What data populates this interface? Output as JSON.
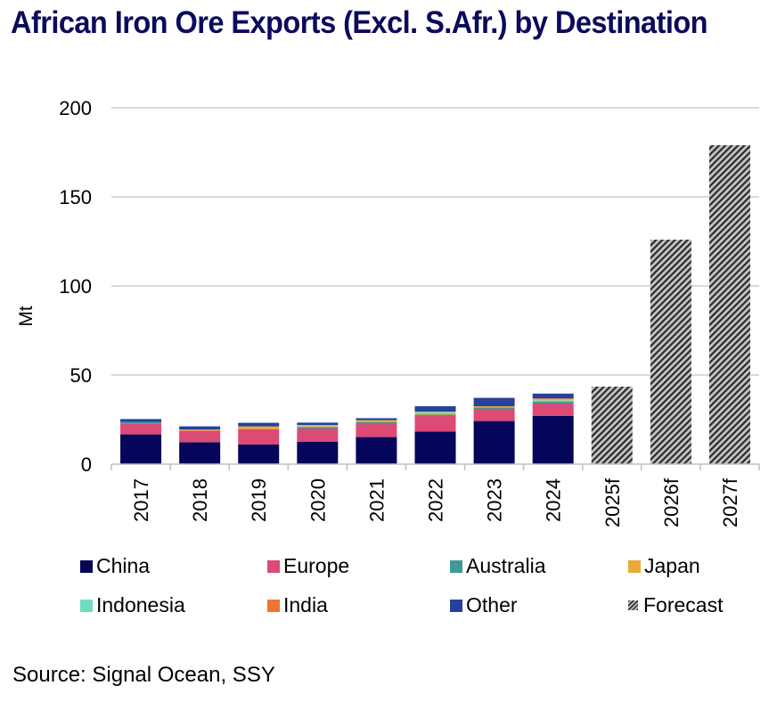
{
  "title": "African Iron Ore Exports (Excl. S.Afr.) by Destination",
  "source": "Source: Signal Ocean, SSY",
  "colors": {
    "China": "#05055a",
    "Europe": "#dc4a76",
    "Australia": "#3f9a96",
    "Japan": "#eaa93a",
    "Indonesia": "#6fdcc0",
    "India": "#ee7534",
    "Other": "#24419c",
    "Forecast": "#9a9a9a",
    "gridline": "#d9d9d9",
    "axis": "#bfbfbf"
  },
  "chart_data": {
    "type": "bar",
    "stacked": true,
    "title": "African Iron Ore Exports (Excl. S.Afr.) by Destination",
    "xlabel": "",
    "ylabel": "Mt",
    "ylim": [
      0,
      200
    ],
    "yticks": [
      0,
      50,
      100,
      150,
      200
    ],
    "grid": true,
    "legend_position": "bottom",
    "categories": [
      "2017",
      "2018",
      "2019",
      "2020",
      "2021",
      "2022",
      "2023",
      "2024",
      "2025f",
      "2026f",
      "2027f"
    ],
    "series": [
      {
        "name": "China",
        "values": [
          16.7,
          12.3,
          11.0,
          12.5,
          15.2,
          18.3,
          24.2,
          27.0,
          null,
          null,
          null
        ]
      },
      {
        "name": "Europe",
        "values": [
          6.0,
          6.5,
          8.5,
          7.5,
          7.3,
          8.7,
          6.8,
          7.0,
          null,
          null,
          null
        ]
      },
      {
        "name": "Australia",
        "values": [
          1.0,
          0.0,
          0.0,
          0.8,
          1.0,
          0.8,
          0.8,
          1.0,
          null,
          null,
          null
        ]
      },
      {
        "name": "Japan",
        "values": [
          0.0,
          0.7,
          1.7,
          0.6,
          1.2,
          1.0,
          0.7,
          0.7,
          null,
          null,
          null
        ]
      },
      {
        "name": "Indonesia",
        "values": [
          0.0,
          0.0,
          0.0,
          0.6,
          0.0,
          0.7,
          0.0,
          0.7,
          null,
          null,
          null
        ]
      },
      {
        "name": "India",
        "values": [
          0.0,
          0.0,
          0.0,
          0.0,
          0.0,
          0.0,
          0.0,
          0.5,
          null,
          null,
          null
        ]
      },
      {
        "name": "Other",
        "values": [
          1.6,
          1.7,
          2.0,
          1.3,
          1.1,
          3.0,
          4.7,
          2.7,
          null,
          null,
          null
        ]
      },
      {
        "name": "Forecast",
        "values": [
          null,
          null,
          null,
          null,
          null,
          null,
          null,
          null,
          43.5,
          126,
          179
        ]
      }
    ],
    "legend": [
      "China",
      "Europe",
      "Australia",
      "Japan",
      "Indonesia",
      "India",
      "Other",
      "Forecast"
    ]
  }
}
